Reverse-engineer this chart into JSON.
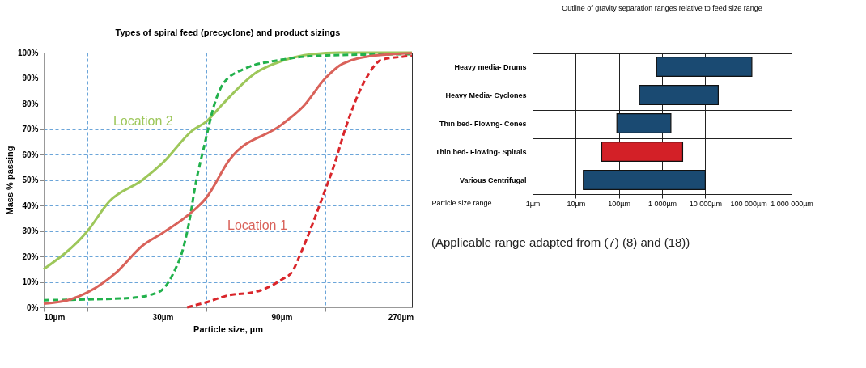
{
  "chart_data": [
    {
      "type": "line",
      "title": "Types of spiral feed (precyclone) and product sizings",
      "xlabel": "Particle size, µm",
      "ylabel": "Mass % passing",
      "log": "x",
      "grid": true,
      "xlim": [
        10,
        300
      ],
      "xticks": [
        {
          "value": 10,
          "label": "10µm"
        },
        {
          "value": 15,
          "label": null
        },
        {
          "value": 30,
          "label": "30µm"
        },
        {
          "value": 45,
          "label": null
        },
        {
          "value": 90,
          "label": "90µm"
        },
        {
          "value": 135,
          "label": null
        },
        {
          "value": 270,
          "label": "270µm"
        }
      ],
      "ylim": [
        0,
        100
      ],
      "yticks": [
        {
          "value": 0,
          "label": "0%"
        },
        {
          "value": 10,
          "label": "10%"
        },
        {
          "value": 20,
          "label": "20%"
        },
        {
          "value": 30,
          "label": "30%"
        },
        {
          "value": 40,
          "label": "40%"
        },
        {
          "value": 50,
          "label": "50%"
        },
        {
          "value": 60,
          "label": "60%"
        },
        {
          "value": 70,
          "label": "70%"
        },
        {
          "value": 80,
          "label": "80%"
        },
        {
          "value": 90,
          "label": "90%"
        },
        {
          "value": 100,
          "label": "100%"
        }
      ],
      "series": [
        {
          "color": "#9dc75a",
          "line_style": "solid",
          "x": [
            10,
            15,
            18.3,
            24.9,
            30,
            39.5,
            45,
            52.5,
            71.3,
            90,
            119,
            154,
            300
          ],
          "values": [
            15,
            30,
            41.5,
            50,
            56.7,
            69.4,
            73,
            80,
            92.2,
            96.7,
            99.4,
            100,
            100
          ]
        },
        {
          "color": "#22b14c",
          "line_style": "dashed",
          "x": [
            10,
            15,
            22.4,
            27.6,
            30,
            33,
            36.5,
            39,
            40,
            44.3,
            48.5,
            52.5,
            62.7,
            90,
            136,
            300
          ],
          "values": [
            2.8,
            3.1,
            3.7,
            5.3,
            7,
            13.1,
            24.2,
            37.6,
            44.4,
            64.4,
            80,
            87.8,
            93.3,
            97.2,
            98.9,
            99.4
          ]
        },
        {
          "color": "#d9625a",
          "line_style": "solid",
          "x": [
            10,
            12.8,
            15,
            19.8,
            24.9,
            30,
            37.6,
            45,
            55.5,
            90,
            110,
            135,
            158,
            215,
            300
          ],
          "values": [
            1.4,
            3.1,
            5.9,
            14.2,
            24.2,
            29.2,
            35.9,
            43.1,
            57.8,
            71.7,
            78.9,
            90,
            95.6,
            98.9,
            99.8
          ]
        },
        {
          "color": "#d9262b",
          "line_style": "dashed",
          "x": [
            37.6,
            45,
            55.5,
            69.6,
            90,
            99.6,
            107,
            135,
            146,
            162,
            194,
            227,
            270,
            300
          ],
          "values": [
            0,
            2,
            4.8,
            5.9,
            10.9,
            14.2,
            20.9,
            46.4,
            55.6,
            70,
            88.9,
            97.2,
            98.3,
            98.7
          ]
        }
      ],
      "annotations": [
        "Location 2",
        "Location 1"
      ]
    },
    {
      "type": "bar",
      "orientation": "horizontal",
      "title": "Outline of gravity separation ranges relative to feed size range",
      "xlabel": "Particle size range",
      "log": "x",
      "grid": true,
      "categories": [
        "Heavy media- Drums",
        "Heavy Media- Cyclones",
        "Thin bed- Flowng- Cones",
        "Thin bed- Flowing- Spirals",
        "Various Centrifugal"
      ],
      "base": [
        750,
        300,
        90,
        40,
        15
      ],
      "values": [
        119250,
        19700,
        1510,
        2960,
        9985
      ],
      "colors": [
        "#1a4a72",
        "#1a4a72",
        "#1a4a72",
        "#d32027",
        "#1a4a72"
      ],
      "xlim": [
        1,
        1000000
      ],
      "xticks": [
        {
          "value": 1,
          "label": "1µm"
        },
        {
          "value": 10,
          "label": "10µm"
        },
        {
          "value": 100,
          "label": "100µm"
        },
        {
          "value": 1000,
          "label": "1 000µm"
        },
        {
          "value": 10000,
          "label": "10 000µm"
        },
        {
          "value": 100000,
          "label": "100 000µm"
        },
        {
          "value": 1000000,
          "label": "1 000 000µm"
        }
      ],
      "annotations": [
        "(Applicable range adapted from (7) (8) and (18))"
      ]
    }
  ]
}
